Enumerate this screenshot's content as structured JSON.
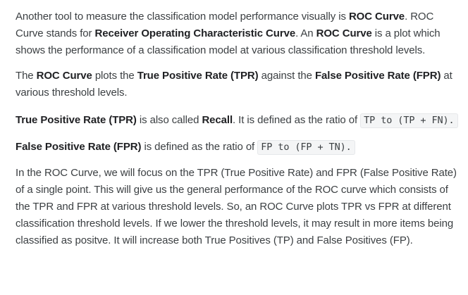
{
  "paragraphs": [
    {
      "segments": [
        {
          "t": "Another tool to measure the classification model performance visually is "
        },
        {
          "b": "ROC Curve"
        },
        {
          "t": ". ROC Curve stands for "
        },
        {
          "b": "Receiver Operating Characteristic Curve"
        },
        {
          "t": ". An "
        },
        {
          "b": "ROC Curve"
        },
        {
          "t": " is a plot which shows the performance of a classification model at various classification threshold levels."
        }
      ]
    },
    {
      "segments": [
        {
          "t": "The "
        },
        {
          "b": "ROC Curve"
        },
        {
          "t": " plots the "
        },
        {
          "b": "True Positive Rate (TPR)"
        },
        {
          "t": " against the "
        },
        {
          "b": "False Positive Rate (FPR)"
        },
        {
          "t": " at various threshold levels."
        }
      ]
    },
    {
      "segments": [
        {
          "b": "True Positive Rate (TPR)"
        },
        {
          "t": " is also called "
        },
        {
          "b": "Recall"
        },
        {
          "t": ". It is defined as the ratio of "
        },
        {
          "c": "TP to (TP + FN)."
        }
      ]
    },
    {
      "segments": [
        {
          "b": "False Positive Rate (FPR)"
        },
        {
          "t": " is defined as the ratio of "
        },
        {
          "c": "FP to (FP + TN)."
        }
      ]
    },
    {
      "segments": [
        {
          "t": "In the ROC Curve, we will focus on the TPR (True Positive Rate) and FPR (False Positive Rate) of a single point. This will give us the general performance of the ROC curve which consists of the TPR and FPR at various threshold levels. So, an ROC Curve plots TPR vs FPR at different classification threshold levels. If we lower the threshold levels, it may result in more items being classified as positve. It will increase both True Positives (TP) and False Positives (FP)."
        }
      ]
    }
  ]
}
